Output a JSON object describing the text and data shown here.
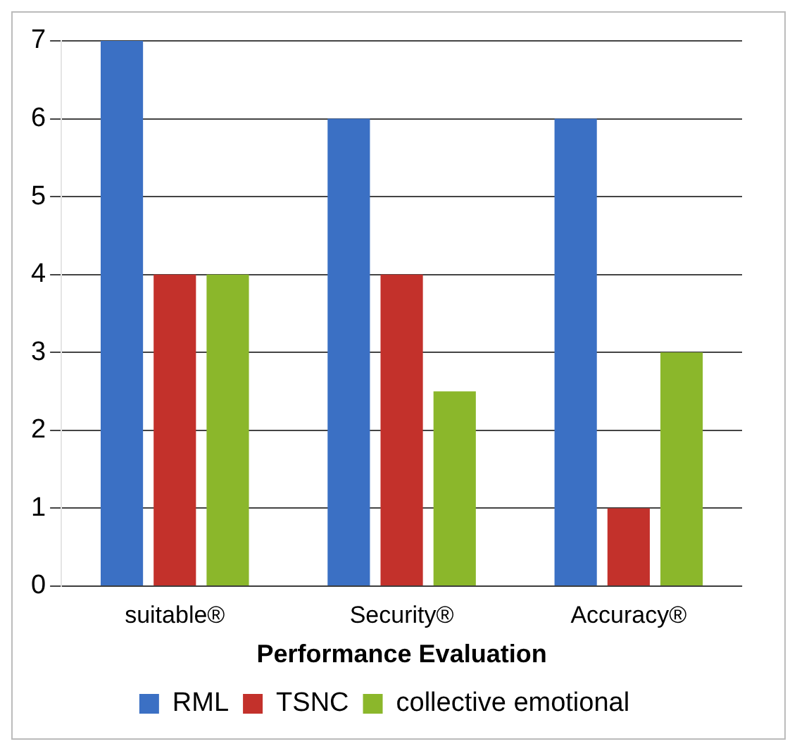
{
  "chart_data": {
    "type": "bar",
    "xlabel": "Performance Evaluation",
    "categories": [
      "suitable®",
      "Security®",
      "Accuracy®"
    ],
    "series": [
      {
        "name": "RML",
        "color": "#3b70c4",
        "values": [
          7,
          6,
          6
        ]
      },
      {
        "name": "TSNC",
        "color": "#c3312b",
        "values": [
          4,
          4,
          1
        ]
      },
      {
        "name": "collective emotional",
        "color": "#8bb72b",
        "values": [
          4,
          2.5,
          3
        ]
      }
    ],
    "ylim": [
      0,
      7
    ],
    "yticks": [
      0,
      1,
      2,
      3,
      4,
      5,
      6,
      7
    ],
    "grid": "y",
    "legend": "bottom"
  }
}
